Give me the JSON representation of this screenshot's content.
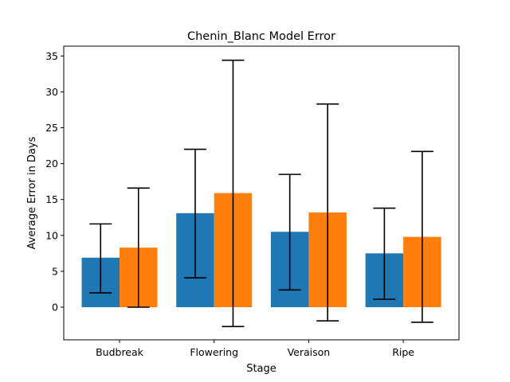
{
  "chart_data": {
    "type": "bar",
    "title": "Chenin_Blanc Model Error",
    "xlabel": "Stage",
    "ylabel": "Average Error in Days",
    "categories": [
      "Budbreak",
      "Flowering",
      "Veraison",
      "Ripe"
    ],
    "ylim": [
      -4.5,
      36.5
    ],
    "yticks": [
      0,
      5,
      10,
      15,
      20,
      25,
      30,
      35
    ],
    "grid": false,
    "legend": "none",
    "series": [
      {
        "color": "#1f77b4",
        "values": [
          6.9,
          13.1,
          10.5,
          7.5
        ],
        "err_low": [
          2.0,
          4.1,
          2.4,
          1.1
        ],
        "err_high": [
          11.6,
          22.0,
          18.5,
          13.8
        ]
      },
      {
        "color": "#ff7f0e",
        "values": [
          8.3,
          15.9,
          13.2,
          9.8
        ],
        "err_low": [
          0.0,
          -2.7,
          -1.9,
          -2.1
        ],
        "err_high": [
          16.6,
          34.4,
          28.3,
          21.7
        ]
      }
    ]
  }
}
